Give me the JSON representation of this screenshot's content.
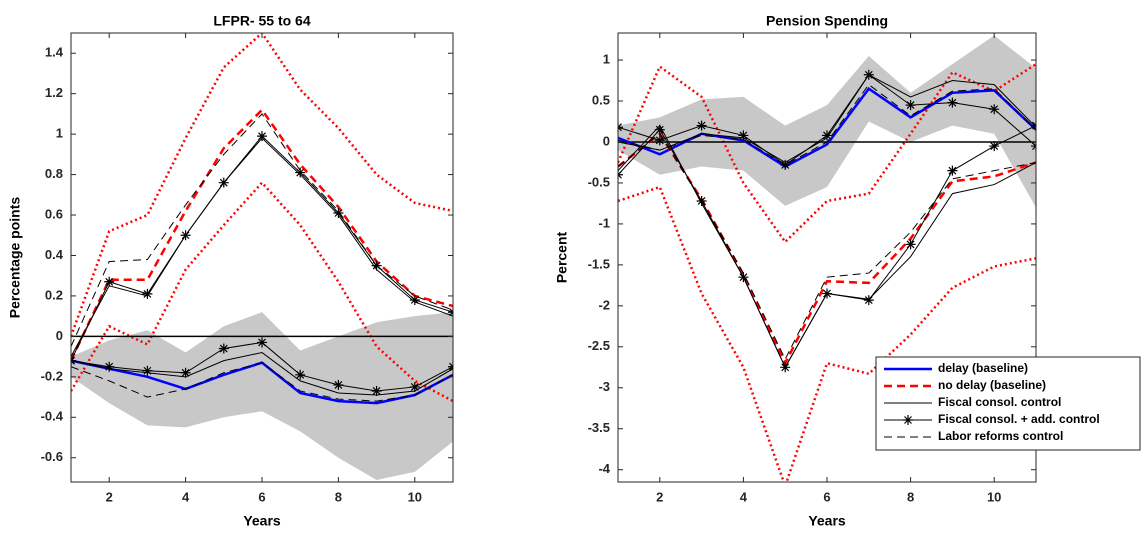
{
  "chart_data": [
    {
      "type": "line",
      "title": "LFPR- 55 to 64",
      "xlabel": "Years",
      "ylabel": "Percentage points",
      "x": [
        1,
        2,
        3,
        4,
        5,
        6,
        7,
        8,
        9,
        10,
        11
      ],
      "xlim": [
        1,
        11
      ],
      "xticks": [
        2,
        4,
        6,
        8,
        10
      ],
      "ylim": [
        -0.72,
        1.5
      ],
      "yticks": [
        -0.6,
        -0.4,
        -0.2,
        0,
        0.2,
        0.4,
        0.6,
        0.8,
        1,
        1.2,
        1.4
      ],
      "hline": 0,
      "legend": false,
      "bands": [
        {
          "color": "#c8c8c8",
          "lower": [
            -0.2,
            -0.33,
            -0.44,
            -0.45,
            -0.4,
            -0.37,
            -0.47,
            -0.6,
            -0.71,
            -0.67,
            -0.52
          ],
          "upper": [
            -0.1,
            -0.02,
            0.03,
            -0.08,
            0.05,
            0.12,
            -0.07,
            0.0,
            0.07,
            0.1,
            0.12
          ]
        }
      ],
      "intervals": [
        {
          "color": "#ff0000",
          "style": "dotted",
          "lower": [
            -0.27,
            0.05,
            -0.04,
            0.33,
            0.55,
            0.76,
            0.55,
            0.27,
            -0.05,
            -0.22,
            -0.32
          ],
          "upper": [
            0.0,
            0.52,
            0.6,
            0.98,
            1.33,
            1.5,
            1.22,
            1.03,
            0.8,
            0.66,
            0.62
          ]
        }
      ],
      "series": [
        {
          "name": "delay (baseline)",
          "color": "#0000ff",
          "style": "solid",
          "width": 2.5,
          "values": [
            -0.12,
            -0.16,
            -0.2,
            -0.26,
            -0.19,
            -0.13,
            -0.28,
            -0.32,
            -0.33,
            -0.29,
            -0.19
          ]
        },
        {
          "name": "no delay (baseline)",
          "color": "#ff0000",
          "style": "dashed",
          "width": 2.5,
          "values": [
            -0.12,
            0.28,
            0.28,
            0.62,
            0.93,
            1.12,
            0.85,
            0.64,
            0.37,
            0.2,
            0.15
          ]
        },
        {
          "name": "Fiscal consol. control",
          "color": "#000000",
          "style": "solid",
          "width": 1,
          "values": [
            -0.1,
            0.25,
            0.2,
            0.5,
            0.76,
            0.98,
            0.8,
            0.6,
            0.33,
            0.17,
            0.1
          ]
        },
        {
          "name": "Fiscal consol. + add. control",
          "color": "#000000",
          "style": "solid",
          "width": 1,
          "marker": "asterisk",
          "values": [
            -0.12,
            0.27,
            0.21,
            0.5,
            0.76,
            0.99,
            0.81,
            0.61,
            0.35,
            0.18,
            0.12
          ]
        },
        {
          "name": "Labor reforms control",
          "color": "#000000",
          "style": "dashed",
          "width": 1,
          "values": [
            -0.05,
            0.37,
            0.38,
            0.65,
            0.9,
            1.1,
            0.82,
            0.62,
            0.35,
            0.2,
            0.13
          ]
        },
        {
          "name": "Fiscal consol. control",
          "color": "#000000",
          "style": "solid",
          "width": 1,
          "values": [
            -0.12,
            -0.16,
            -0.18,
            -0.2,
            -0.12,
            -0.08,
            -0.22,
            -0.28,
            -0.29,
            -0.27,
            -0.16
          ]
        },
        {
          "name": "Fiscal consol. + add. control",
          "color": "#000000",
          "style": "solid",
          "width": 1,
          "marker": "asterisk",
          "values": [
            -0.12,
            -0.15,
            -0.17,
            -0.18,
            -0.06,
            -0.03,
            -0.19,
            -0.24,
            -0.27,
            -0.25,
            -0.15
          ]
        },
        {
          "name": "Labor reforms control",
          "color": "#000000",
          "style": "dashed",
          "width": 1,
          "values": [
            -0.15,
            -0.22,
            -0.3,
            -0.26,
            -0.18,
            -0.13,
            -0.27,
            -0.31,
            -0.32,
            -0.29,
            -0.19
          ]
        }
      ]
    },
    {
      "type": "line",
      "title": "Pension Spending",
      "xlabel": "Years",
      "ylabel": "Percent",
      "x": [
        1,
        2,
        3,
        4,
        5,
        6,
        7,
        8,
        9,
        10,
        11
      ],
      "xlim": [
        1,
        11
      ],
      "xticks": [
        2,
        4,
        6,
        8,
        10
      ],
      "ylim": [
        -4.15,
        1.33
      ],
      "yticks": [
        -4,
        -3.5,
        -3,
        -2.5,
        -2,
        -1.5,
        -1,
        -0.5,
        0,
        0.5,
        1
      ],
      "hline": 0,
      "legend": "lower right",
      "bands": [
        {
          "color": "#c8c8c8",
          "lower": [
            -0.1,
            -0.4,
            -0.3,
            -0.35,
            -0.78,
            -0.55,
            0.25,
            0.0,
            0.2,
            0.1,
            -0.8
          ],
          "upper": [
            0.2,
            0.3,
            0.52,
            0.55,
            0.2,
            0.45,
            1.05,
            0.6,
            0.95,
            1.3,
            0.9
          ]
        }
      ],
      "intervals": [
        {
          "color": "#ff0000",
          "style": "dotted",
          "lower": [
            -0.72,
            -0.55,
            -1.85,
            -2.75,
            -4.2,
            -2.7,
            -2.83,
            -2.35,
            -1.78,
            -1.52,
            -1.42
          ],
          "upper": [
            -0.25,
            0.92,
            0.55,
            -0.5,
            -1.22,
            -0.72,
            -0.63,
            0.1,
            0.85,
            0.62,
            0.95
          ]
        }
      ],
      "series": [
        {
          "name": "delay (baseline)",
          "color": "#0000ff",
          "style": "solid",
          "width": 2.5,
          "values": [
            0.05,
            -0.15,
            0.1,
            0.02,
            -0.3,
            -0.03,
            0.65,
            0.3,
            0.6,
            0.63,
            0.15
          ]
        },
        {
          "name": "no delay (baseline)",
          "color": "#ff0000",
          "style": "dashed",
          "width": 2.5,
          "values": [
            -0.3,
            0.1,
            -0.7,
            -1.62,
            -2.7,
            -1.7,
            -1.72,
            -1.18,
            -0.48,
            -0.42,
            -0.25
          ]
        },
        {
          "name": "Fiscal consol. control",
          "color": "#000000",
          "style": "solid",
          "width": 1,
          "values": [
            0.0,
            -0.1,
            0.1,
            0.05,
            -0.25,
            0.05,
            0.82,
            0.55,
            0.75,
            0.7,
            0.18
          ]
        },
        {
          "name": "Fiscal consol. + add. control",
          "color": "#000000",
          "style": "solid",
          "width": 1,
          "marker": "asterisk",
          "values": [
            0.18,
            0.02,
            0.2,
            0.08,
            -0.28,
            0.08,
            0.82,
            0.45,
            0.48,
            0.4,
            -0.05
          ]
        },
        {
          "name": "Labor reforms control",
          "color": "#000000",
          "style": "dashed",
          "width": 1,
          "values": [
            0.02,
            -0.1,
            0.08,
            0.03,
            -0.28,
            0.0,
            0.7,
            0.32,
            0.62,
            0.65,
            0.15
          ]
        },
        {
          "name": "Fiscal consol. control",
          "color": "#000000",
          "style": "solid",
          "width": 1,
          "values": [
            -0.35,
            0.2,
            -0.75,
            -1.65,
            -2.75,
            -1.85,
            -1.92,
            -1.4,
            -0.63,
            -0.52,
            -0.25
          ]
        },
        {
          "name": "Fiscal consol. + add. control",
          "color": "#000000",
          "style": "solid",
          "width": 1,
          "marker": "asterisk",
          "values": [
            -0.4,
            0.15,
            -0.72,
            -1.65,
            -2.75,
            -1.85,
            -1.93,
            -1.25,
            -0.35,
            -0.05,
            0.2
          ]
        },
        {
          "name": "Labor reforms control",
          "color": "#000000",
          "style": "dashed",
          "width": 1,
          "values": [
            -0.3,
            0.1,
            -0.72,
            -1.6,
            -2.65,
            -1.65,
            -1.6,
            -1.1,
            -0.45,
            -0.35,
            -0.25
          ]
        }
      ]
    }
  ]
}
